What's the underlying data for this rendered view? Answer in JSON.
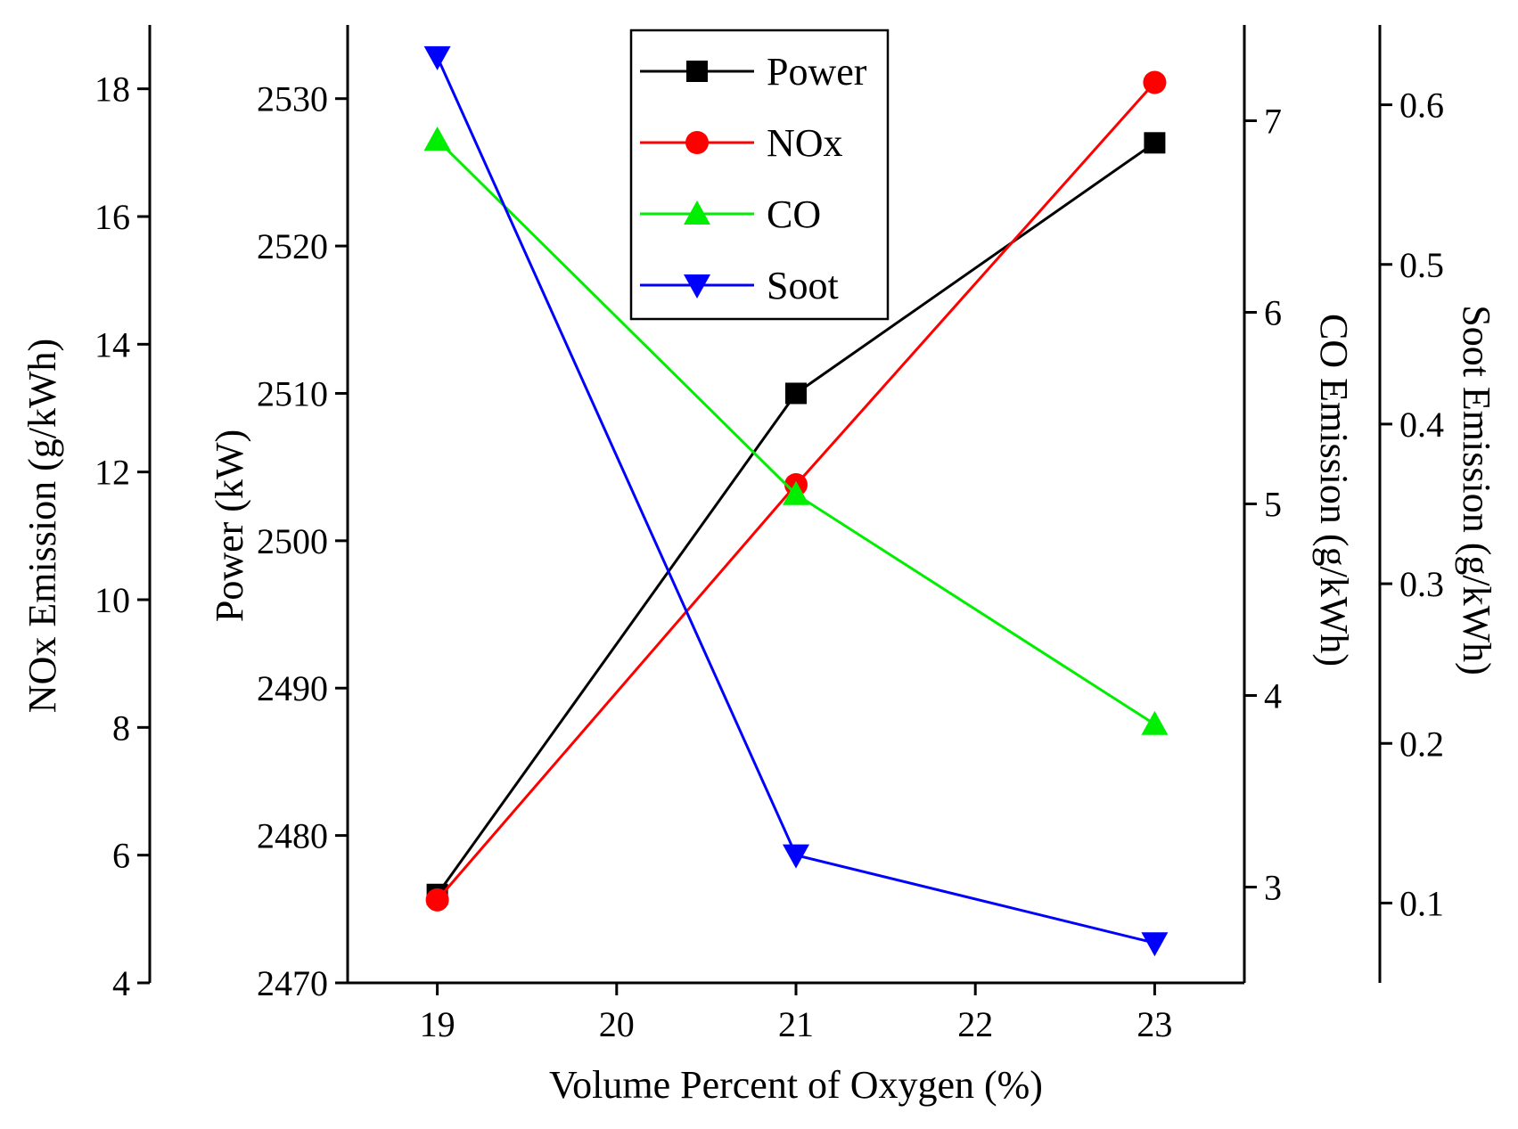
{
  "chart_data": {
    "type": "line",
    "title": "",
    "xlabel": "Volume Percent of Oxygen (%)",
    "x_ticks": [
      19,
      20,
      21,
      22,
      23
    ],
    "xlim": [
      18.5,
      23.5
    ],
    "x": [
      19,
      21,
      23
    ],
    "axes": {
      "nox": {
        "label": "NOx Emission (g/kWh)",
        "ylim": [
          4,
          19
        ],
        "ticks": [
          4,
          6,
          8,
          10,
          12,
          14,
          16,
          18
        ]
      },
      "power": {
        "label": "Power (kW)",
        "ylim": [
          2470,
          2535
        ],
        "ticks": [
          2470,
          2480,
          2490,
          2500,
          2510,
          2520,
          2530
        ]
      },
      "co": {
        "label": "CO Emission (g/kWh)",
        "ylim": [
          2.5,
          7.5
        ],
        "ticks": [
          3,
          4,
          5,
          6,
          7
        ]
      },
      "soot": {
        "label": "Soot Emission (g/kWh)",
        "ylim": [
          0.05,
          0.65
        ],
        "ticks": [
          0.1,
          0.2,
          0.3,
          0.4,
          0.5,
          0.6
        ]
      }
    },
    "series": [
      {
        "name": "Power",
        "axis": "power",
        "color": "#000000",
        "marker": "square",
        "values": [
          2476,
          2510,
          2527
        ]
      },
      {
        "name": "NOx",
        "axis": "nox",
        "color": "#ff0000",
        "marker": "circle",
        "values": [
          5.3,
          11.8,
          18.1
        ]
      },
      {
        "name": "CO",
        "axis": "co",
        "color": "#00ee00",
        "marker": "triangle-up",
        "values": [
          6.9,
          5.05,
          3.85
        ]
      },
      {
        "name": "Soot",
        "axis": "soot",
        "color": "#0000ff",
        "marker": "triangle-down",
        "values": [
          0.63,
          0.13,
          0.075
        ]
      }
    ],
    "legend": {
      "position": "top-center"
    },
    "grid": false
  }
}
